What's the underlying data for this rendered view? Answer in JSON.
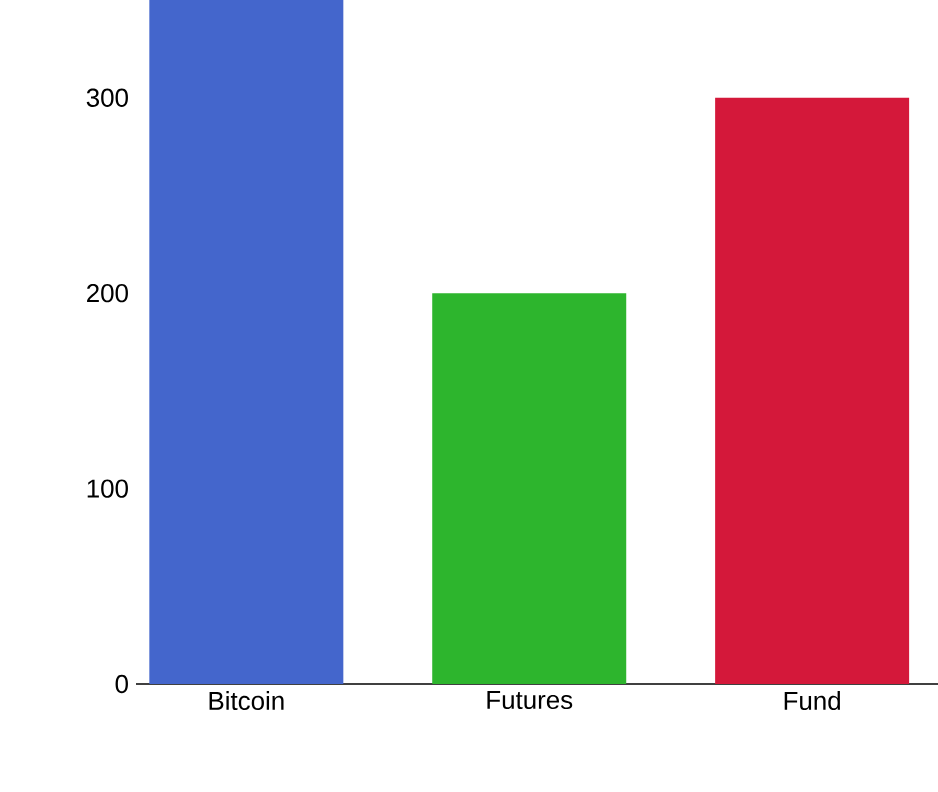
{
  "chart_data": {
    "type": "bar",
    "categories": [
      "Bitcoin",
      "Futures",
      "Fund"
    ],
    "values": [
      350,
      200,
      300
    ],
    "colors": [
      "#4466cc",
      "#2db52d",
      "#d4183a"
    ],
    "ylim": [
      0,
      350
    ],
    "yticks": [
      0,
      100,
      200,
      300
    ]
  }
}
